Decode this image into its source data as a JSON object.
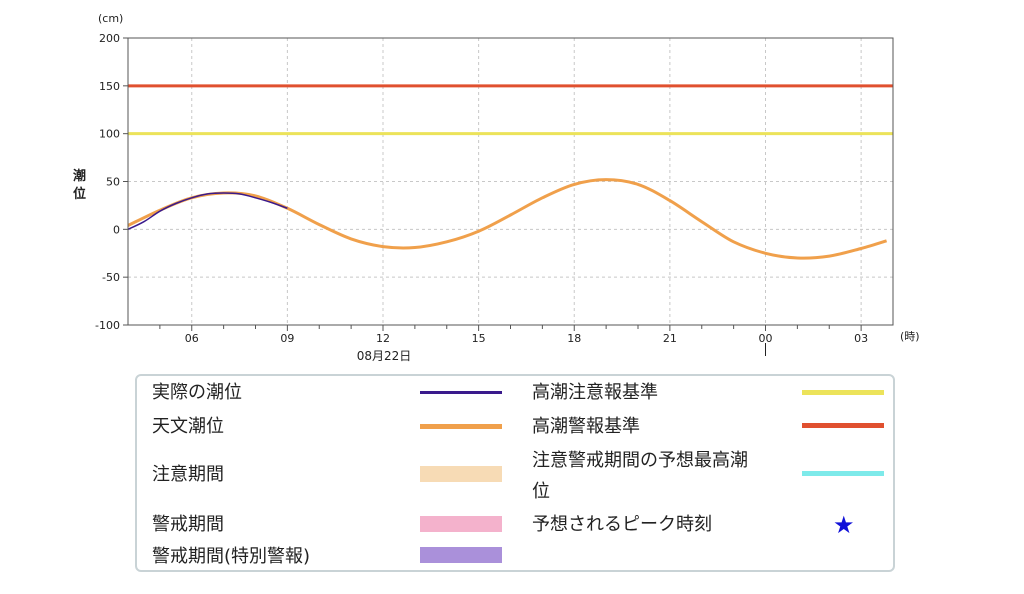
{
  "chart_data": {
    "type": "line",
    "yunit": "(cm)",
    "ylabel": "潮位",
    "xunit": "(時)",
    "date_label": "08月22日",
    "ylim": [
      -100,
      200
    ],
    "yticks": [
      200,
      150,
      100,
      50,
      0,
      -50,
      -100
    ],
    "xticks": [
      "06",
      "09",
      "12",
      "15",
      "18",
      "21",
      "00",
      "03"
    ],
    "grid": true,
    "thresholds": [
      {
        "name": "高潮注意報基準",
        "value": 100,
        "color": "#ece35a"
      },
      {
        "name": "高潮警報基準",
        "value": 150,
        "color": "#e0502f"
      }
    ],
    "series": [
      {
        "name": "天文潮位",
        "color": "#f0a04b",
        "x": [
          4,
          5,
          6,
          7,
          8,
          9,
          10,
          11,
          12,
          13,
          14,
          15,
          16,
          17,
          18,
          19,
          20,
          21,
          22,
          23,
          24,
          25,
          26,
          27,
          27.8
        ],
        "y": [
          4,
          20,
          33,
          38,
          35,
          22,
          5,
          -10,
          -18,
          -19,
          -13,
          -2,
          15,
          33,
          47,
          52,
          47,
          30,
          8,
          -13,
          -25,
          -30,
          -28,
          -20,
          -12
        ]
      },
      {
        "name": "実際の潮位",
        "color": "#3a1a8c",
        "x": [
          4,
          4.5,
          5,
          5.5,
          6,
          6.5,
          7,
          7.5,
          8,
          8.5,
          9
        ],
        "y": [
          0,
          8,
          19,
          27,
          33,
          37,
          38,
          37,
          33,
          28,
          22
        ]
      }
    ]
  },
  "legend": {
    "actual": "実際の潮位",
    "astro": "天文潮位",
    "caution_period": "注意期間",
    "warning_period": "警戒期間",
    "special_warning_period": "警戒期間(特別警報)",
    "advisory_standard": "高潮注意報基準",
    "warning_standard": "高潮警報基準",
    "forecast_max_line1": "注意警戒期間の予想最高潮",
    "forecast_max_line2": "位",
    "peak_time": "予想されるピーク時刻",
    "star": "★",
    "colors": {
      "caution_box": "#f7dbb5",
      "warning_box": "#f4b2cc",
      "special_box": "#aa90da",
      "forecast_max": "#7eeaea",
      "star": "#1010d8"
    }
  }
}
